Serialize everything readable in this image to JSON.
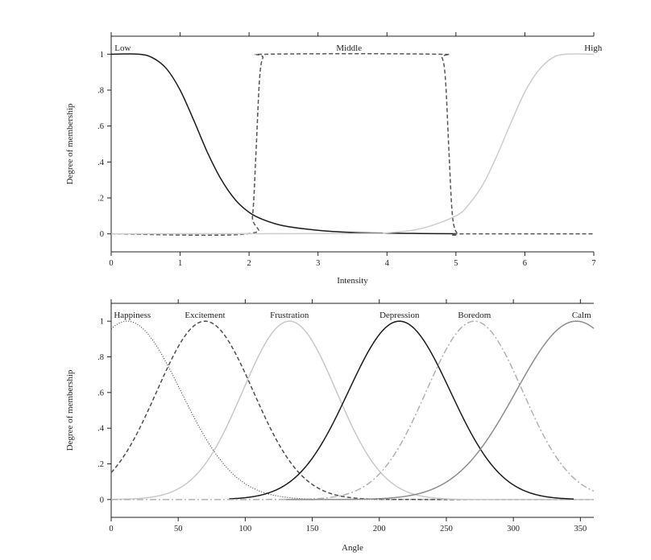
{
  "chart_data": [
    {
      "type": "line",
      "title": "",
      "xlabel": "Intensity",
      "ylabel": "Degree of membership",
      "xlim": [
        0,
        7
      ],
      "ylim": [
        -0.1,
        1.1
      ],
      "xticks": [
        0,
        1,
        2,
        3,
        4,
        5,
        6,
        7
      ],
      "xtick_labels": [
        "0",
        "1",
        "2",
        "3",
        "4",
        "5",
        "6",
        "7"
      ],
      "yticks": [
        0,
        0.2,
        0.4,
        0.6,
        0.8,
        1
      ],
      "ytick_labels": [
        "0",
        ".2",
        ".4",
        ".6",
        ".8",
        "1"
      ],
      "grid": false,
      "legend": "none",
      "series": [
        {
          "name": "Low",
          "color": "#1a1a1a",
          "dash": "solid",
          "x": [
            0,
            0.4,
            0.6,
            0.8,
            1.0,
            1.2,
            1.4,
            1.6,
            1.8,
            2.0,
            2.2,
            2.5,
            3.0,
            3.5,
            4.0,
            4.5,
            5.0
          ],
          "y": [
            1,
            1,
            0.98,
            0.92,
            0.8,
            0.63,
            0.45,
            0.3,
            0.19,
            0.12,
            0.08,
            0.045,
            0.02,
            0.008,
            0.004,
            0.002,
            0.001
          ]
        },
        {
          "name": "Middle",
          "color": "#555555",
          "dash": "dashed",
          "x": [
            0,
            1.97,
            2.05,
            2.1,
            2.15,
            2.2,
            2.3,
            4.7,
            4.8,
            4.85,
            4.9,
            4.95,
            5.02,
            5.1,
            7
          ],
          "y": [
            0,
            0,
            0.1,
            0.45,
            0.85,
            0.98,
            1,
            1,
            0.98,
            0.85,
            0.45,
            0.1,
            0,
            0,
            0
          ]
        },
        {
          "name": "High",
          "color": "#cccccc",
          "dash": "solid",
          "x": [
            0,
            3.5,
            4.0,
            4.5,
            5.0,
            5.2,
            5.4,
            5.6,
            5.8,
            6.0,
            6.2,
            6.4,
            6.6,
            7
          ],
          "y": [
            0,
            0.002,
            0.006,
            0.03,
            0.1,
            0.17,
            0.28,
            0.44,
            0.62,
            0.79,
            0.91,
            0.98,
            1,
            1
          ]
        }
      ]
    },
    {
      "type": "line",
      "title": "",
      "xlabel": "Angle",
      "ylabel": "Degree of membership",
      "xlim": [
        0,
        360
      ],
      "ylim": [
        -0.1,
        1.1
      ],
      "xticks": [
        0,
        50,
        100,
        150,
        200,
        250,
        300,
        350
      ],
      "xtick_labels": [
        "0",
        "50",
        "100",
        "150",
        "200",
        "250",
        "300",
        "350"
      ],
      "yticks": [
        0,
        0.2,
        0.4,
        0.6,
        0.8,
        1
      ],
      "ytick_labels": [
        "0",
        ".2",
        ".4",
        ".6",
        ".8",
        "1"
      ],
      "grid": false,
      "legend": "none",
      "series": [
        {
          "name": "Happiness",
          "color": "#333333",
          "dash": "dotted",
          "gauss": {
            "mu": 12,
            "sigma": 40,
            "from": 0,
            "to": 360
          }
        },
        {
          "name": "Excitement",
          "color": "#4d4d4d",
          "dash": "dashed",
          "gauss": {
            "mu": 70,
            "sigma": 36,
            "from": 0,
            "to": 360
          }
        },
        {
          "name": "Frustration",
          "color": "#c8c8c8",
          "dash": "solid",
          "gauss": {
            "mu": 133,
            "sigma": 35,
            "from": 0,
            "to": 360
          }
        },
        {
          "name": "Depression",
          "color": "#1a1a1a",
          "dash": "solid",
          "gauss": {
            "mu": 215,
            "sigma": 38,
            "from": 88,
            "to": 345
          }
        },
        {
          "name": "Boredom",
          "color": "#b0b0b0",
          "dash": "dashdot",
          "gauss": {
            "mu": 271,
            "sigma": 36,
            "from": 0,
            "to": 360
          }
        },
        {
          "name": "Calm",
          "color": "#8c8c8c",
          "dash": "solid",
          "gauss": {
            "mu": 347,
            "sigma": 45,
            "from": 130,
            "to": 360
          }
        }
      ]
    }
  ]
}
